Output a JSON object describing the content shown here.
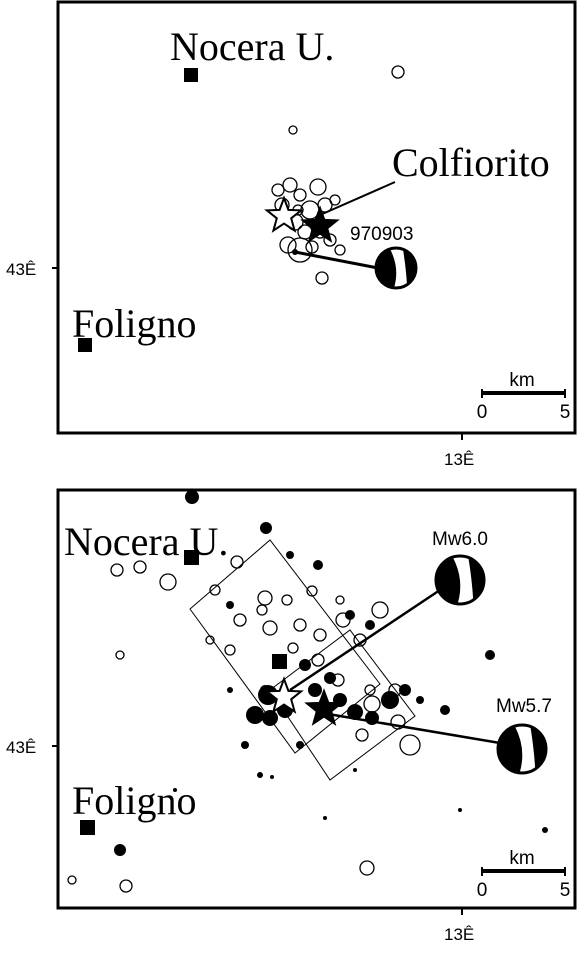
{
  "panels": [
    {
      "towns": [
        "Nocera U.",
        "Colfiorito",
        "Foligno"
      ],
      "event_label": "970903",
      "lat_label": "43Ê",
      "lon_label": "13Ê",
      "scale": {
        "unit": "km",
        "ticks": [
          "0",
          "5"
        ]
      }
    },
    {
      "towns": [
        "Nocera U.",
        "Foligno"
      ],
      "magnitudes": [
        "Mw6.0",
        "Mw5.7"
      ],
      "lat_label": "43Ê",
      "lon_label": "13Ê",
      "scale": {
        "unit": "km",
        "ticks": [
          "0",
          "5"
        ]
      }
    }
  ]
}
